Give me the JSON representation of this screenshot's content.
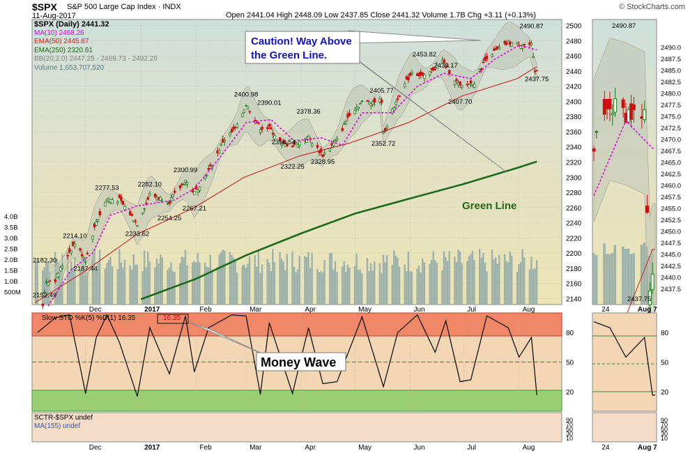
{
  "header": {
    "symbol": "$SPX",
    "name": "S&P 500 Large Cap Index",
    "exchange": "INDX",
    "date": "11-Aug-2017",
    "ohlc": "Open 2441.04   High 2448.09   Low 2437.85   Close 2441.32   Volume 1.7B   Chg +3.11 (+0.13%)",
    "credit": "© StockCharts.com"
  },
  "legend": {
    "price": "$SPX (Daily) 2441.32",
    "ma10": "MA(10) 2468.26",
    "ema50": "EMA(50) 2445.87",
    "ema250": "EMA(250) 2320.61",
    "bb": "BB(20,2.0) 2447.25 - 2469.73 - 2492.20",
    "volume": "Volume 1,653,707,520"
  },
  "annotations": {
    "caution": "Caution! Way Above\nthe Green Line.",
    "green_line": "Green Line",
    "money_wave": "Money Wave"
  },
  "sto": {
    "label": "Slow STO %K(5) %D(1) 16.35",
    "box_value": "16.35",
    "right_value": "16.35"
  },
  "sctr": {
    "label1": "SCTR-$SPX undef",
    "label2": "MA(155) undef"
  },
  "colors": {
    "price_bg": "#e8e2b8",
    "price_bg_top": "#cfe0dc",
    "volume": "#8fa8a8",
    "ma10": "#e000e0",
    "ema50": "#cc2222",
    "ema250": "#1c6a1c",
    "up": "#1c7a1c",
    "down": "#cc1111",
    "bb_fill": "#c0c4b4",
    "sto_line": "#111111",
    "sto_over": "#ee7a5a",
    "sto_under": "#88cc66",
    "sto_bg": "#f3d6b4",
    "sctr_bg": "#f5dcc8",
    "annotation_blue": "#1010d0",
    "annotation_green": "#1a6a1a"
  },
  "chart_data": [
    {
      "type": "candlestick",
      "title": "$SPX S&P 500 Large Cap Index",
      "x_ticks": [
        "Dec",
        "2017",
        "Feb",
        "Mar",
        "Apr",
        "May",
        "Jun",
        "Jul",
        "Aug"
      ],
      "y_ticks": [
        2140,
        2160,
        2180,
        2200,
        2220,
        2240,
        2260,
        2280,
        2300,
        2320,
        2340,
        2360,
        2380,
        2400,
        2420,
        2440,
        2460,
        2480,
        2500
      ],
      "ylim": [
        2132,
        2508
      ],
      "volume_ticks": [
        "4.0B",
        "3.5B",
        "3.0B",
        "2.5B",
        "2.0B",
        "1.5B",
        "1.0B",
        "500M"
      ],
      "price_labels": [
        {
          "label": "2152.49",
          "date": "2016-11-09",
          "value": 2152.49
        },
        {
          "label": "2182.30",
          "date": "2016-11-09",
          "value": 2182.3
        },
        {
          "label": "2214.10",
          "date": "2016-11-25",
          "value": 2214.1
        },
        {
          "label": "2187.44",
          "date": "2016-12-01",
          "value": 2187.44
        },
        {
          "label": "2277.53",
          "date": "2016-12-13",
          "value": 2277.53
        },
        {
          "label": "2233.62",
          "date": "2016-12-30",
          "value": 2233.62
        },
        {
          "label": "2282.10",
          "date": "2017-01-06",
          "value": 2282.1
        },
        {
          "label": "2254.25",
          "date": "2017-01-17",
          "value": 2254.25
        },
        {
          "label": "2300.99",
          "date": "2017-01-26",
          "value": 2300.99
        },
        {
          "label": "2267.21",
          "date": "2017-01-31",
          "value": 2267.21
        },
        {
          "label": "2400.98",
          "date": "2017-03-01",
          "value": 2400.98
        },
        {
          "label": "2390.01",
          "date": "2017-03-14",
          "value": 2390.01
        },
        {
          "label": "2354.54",
          "date": "2017-03-22",
          "value": 2354.54
        },
        {
          "label": "2322.25",
          "date": "2017-03-27",
          "value": 2322.25
        },
        {
          "label": "2378.36",
          "date": "2017-04-05",
          "value": 2378.36
        },
        {
          "label": "2328.95",
          "date": "2017-04-13",
          "value": 2328.95
        },
        {
          "label": "2352.72",
          "date": "2017-05-17",
          "value": 2352.72
        },
        {
          "label": "2405.77",
          "date": "2017-05-16",
          "value": 2405.77
        },
        {
          "label": "2453.82",
          "date": "2017-06-09",
          "value": 2453.82
        },
        {
          "label": "2439.17",
          "date": "2017-06-21",
          "value": 2439.17
        },
        {
          "label": "2407.70",
          "date": "2017-06-29",
          "value": 2407.7
        },
        {
          "label": "2490.87",
          "date": "2017-08-08",
          "value": 2490.87
        },
        {
          "label": "2437.75",
          "date": "2017-08-11",
          "value": 2437.75
        }
      ],
      "close_path": [
        {
          "date": "2016-11-04",
          "value": 2085
        },
        {
          "date": "2016-11-09",
          "value": 2163
        },
        {
          "date": "2016-11-14",
          "value": 2165
        },
        {
          "date": "2016-11-22",
          "value": 2202
        },
        {
          "date": "2016-11-25",
          "value": 2213
        },
        {
          "date": "2016-12-01",
          "value": 2191
        },
        {
          "date": "2016-12-07",
          "value": 2241
        },
        {
          "date": "2016-12-13",
          "value": 2271
        },
        {
          "date": "2016-12-20",
          "value": 2270
        },
        {
          "date": "2016-12-30",
          "value": 2239
        },
        {
          "date": "2017-01-06",
          "value": 2277
        },
        {
          "date": "2017-01-17",
          "value": 2268
        },
        {
          "date": "2017-01-26",
          "value": 2296
        },
        {
          "date": "2017-01-31",
          "value": 2279
        },
        {
          "date": "2017-02-10",
          "value": 2316
        },
        {
          "date": "2017-02-16",
          "value": 2347
        },
        {
          "date": "2017-02-24",
          "value": 2367
        },
        {
          "date": "2017-03-01",
          "value": 2396
        },
        {
          "date": "2017-03-09",
          "value": 2365
        },
        {
          "date": "2017-03-14",
          "value": 2365
        },
        {
          "date": "2017-03-21",
          "value": 2344
        },
        {
          "date": "2017-03-27",
          "value": 2342
        },
        {
          "date": "2017-04-05",
          "value": 2352
        },
        {
          "date": "2017-04-13",
          "value": 2329
        },
        {
          "date": "2017-04-21",
          "value": 2349
        },
        {
          "date": "2017-04-28",
          "value": 2384
        },
        {
          "date": "2017-05-05",
          "value": 2399
        },
        {
          "date": "2017-05-16",
          "value": 2401
        },
        {
          "date": "2017-05-17",
          "value": 2357
        },
        {
          "date": "2017-05-25",
          "value": 2405
        },
        {
          "date": "2017-06-02",
          "value": 2439
        },
        {
          "date": "2017-06-09",
          "value": 2432
        },
        {
          "date": "2017-06-19",
          "value": 2453
        },
        {
          "date": "2017-06-29",
          "value": 2419
        },
        {
          "date": "2017-07-07",
          "value": 2425
        },
        {
          "date": "2017-07-14",
          "value": 2459
        },
        {
          "date": "2017-07-26",
          "value": 2477
        },
        {
          "date": "2017-08-01",
          "value": 2476
        },
        {
          "date": "2017-08-08",
          "value": 2474
        },
        {
          "date": "2017-08-10",
          "value": 2438
        },
        {
          "date": "2017-08-11",
          "value": 2441
        }
      ],
      "series": [
        {
          "name": "MA(10)",
          "last": 2468.26,
          "points": [
            {
              "date": "2016-11-10",
              "value": 2130
            },
            {
              "date": "2016-11-23",
              "value": 2178
            },
            {
              "date": "2016-12-05",
              "value": 2200
            },
            {
              "date": "2016-12-15",
              "value": 2250
            },
            {
              "date": "2016-12-30",
              "value": 2262
            },
            {
              "date": "2017-01-20",
              "value": 2270
            },
            {
              "date": "2017-01-31",
              "value": 2285
            },
            {
              "date": "2017-02-15",
              "value": 2328
            },
            {
              "date": "2017-03-01",
              "value": 2372
            },
            {
              "date": "2017-03-15",
              "value": 2376
            },
            {
              "date": "2017-03-28",
              "value": 2348
            },
            {
              "date": "2017-04-12",
              "value": 2352
            },
            {
              "date": "2017-04-24",
              "value": 2342
            },
            {
              "date": "2017-05-05",
              "value": 2385
            },
            {
              "date": "2017-05-22",
              "value": 2385
            },
            {
              "date": "2017-06-05",
              "value": 2420
            },
            {
              "date": "2017-06-20",
              "value": 2437
            },
            {
              "date": "2017-07-05",
              "value": 2430
            },
            {
              "date": "2017-07-18",
              "value": 2455
            },
            {
              "date": "2017-08-01",
              "value": 2474
            },
            {
              "date": "2017-08-11",
              "value": 2468
            }
          ]
        },
        {
          "name": "EMA(50)",
          "last": 2445.87,
          "points": [
            {
              "date": "2016-11-03",
              "value": 2135
            },
            {
              "date": "2016-11-30",
              "value": 2175
            },
            {
              "date": "2016-12-30",
              "value": 2225
            },
            {
              "date": "2017-01-31",
              "value": 2260
            },
            {
              "date": "2017-02-28",
              "value": 2300
            },
            {
              "date": "2017-03-31",
              "value": 2328
            },
            {
              "date": "2017-04-28",
              "value": 2345
            },
            {
              "date": "2017-05-31",
              "value": 2372
            },
            {
              "date": "2017-06-30",
              "value": 2407
            },
            {
              "date": "2017-07-31",
              "value": 2430
            },
            {
              "date": "2017-08-11",
              "value": 2446
            }
          ]
        },
        {
          "name": "EMA(250)",
          "last": 2320.61,
          "points": [
            {
              "date": "2017-01-01",
              "value": 2139
            },
            {
              "date": "2017-02-01",
              "value": 2166
            },
            {
              "date": "2017-03-01",
              "value": 2197
            },
            {
              "date": "2017-04-01",
              "value": 2226
            },
            {
              "date": "2017-05-01",
              "value": 2252
            },
            {
              "date": "2017-06-01",
              "value": 2272
            },
            {
              "date": "2017-07-01",
              "value": 2291
            },
            {
              "date": "2017-08-01",
              "value": 2313
            },
            {
              "date": "2017-08-11",
              "value": 2320.61
            }
          ]
        }
      ]
    },
    {
      "type": "line",
      "title": "Slow STO %K(5) %D(1)",
      "y_ticks": [
        20,
        50,
        80
      ],
      "ylim": [
        0,
        100
      ],
      "overbought": 80,
      "oversold": 20,
      "last": 16.35,
      "points": [
        {
          "date": "2016-11-04",
          "value": 80
        },
        {
          "date": "2016-11-14",
          "value": 95
        },
        {
          "date": "2016-11-22",
          "value": 98
        },
        {
          "date": "2016-12-01",
          "value": 18
        },
        {
          "date": "2016-12-07",
          "value": 75
        },
        {
          "date": "2016-12-13",
          "value": 98
        },
        {
          "date": "2016-12-20",
          "value": 70
        },
        {
          "date": "2016-12-30",
          "value": 15
        },
        {
          "date": "2017-01-06",
          "value": 85
        },
        {
          "date": "2017-01-17",
          "value": 38
        },
        {
          "date": "2017-01-26",
          "value": 97
        },
        {
          "date": "2017-01-31",
          "value": 40
        },
        {
          "date": "2017-02-08",
          "value": 85
        },
        {
          "date": "2017-02-21",
          "value": 98
        },
        {
          "date": "2017-03-01",
          "value": 97
        },
        {
          "date": "2017-03-09",
          "value": 17
        },
        {
          "date": "2017-03-14",
          "value": 90
        },
        {
          "date": "2017-03-27",
          "value": 18
        },
        {
          "date": "2017-04-05",
          "value": 85
        },
        {
          "date": "2017-04-13",
          "value": 28
        },
        {
          "date": "2017-04-21",
          "value": 30
        },
        {
          "date": "2017-05-05",
          "value": 96
        },
        {
          "date": "2017-05-17",
          "value": 25
        },
        {
          "date": "2017-05-25",
          "value": 80
        },
        {
          "date": "2017-06-05",
          "value": 98
        },
        {
          "date": "2017-06-15",
          "value": 60
        },
        {
          "date": "2017-06-21",
          "value": 92
        },
        {
          "date": "2017-06-29",
          "value": 30
        },
        {
          "date": "2017-07-05",
          "value": 32
        },
        {
          "date": "2017-07-14",
          "value": 97
        },
        {
          "date": "2017-07-26",
          "value": 85
        },
        {
          "date": "2017-08-01",
          "value": 55
        },
        {
          "date": "2017-08-08",
          "value": 75
        },
        {
          "date": "2017-08-11",
          "value": 16.35
        }
      ]
    },
    {
      "type": "line",
      "title": "SCTR-$SPX",
      "values_shown": "undef",
      "y_ticks": [
        10,
        30,
        50,
        70,
        90
      ]
    }
  ]
}
